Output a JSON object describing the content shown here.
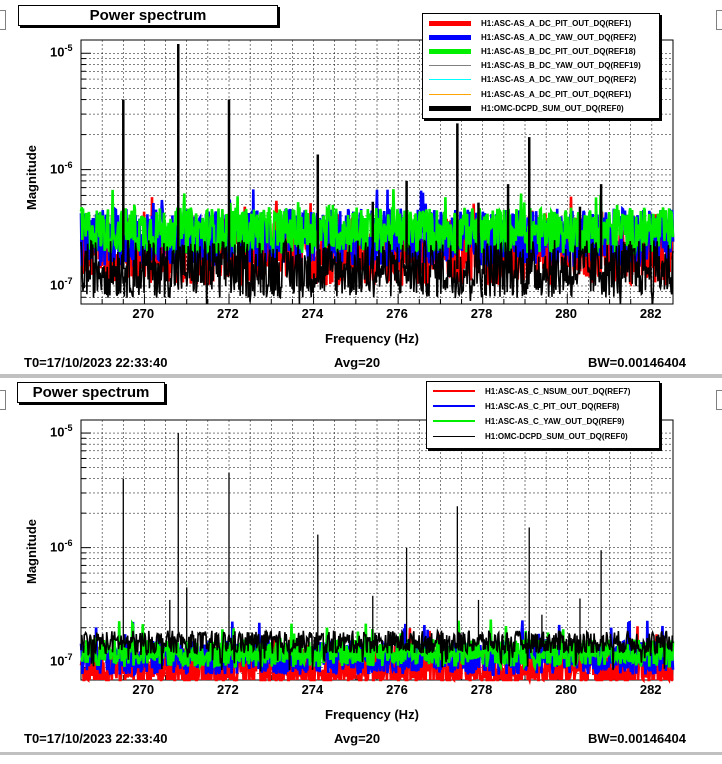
{
  "panels": [
    {
      "title": "Power spectrum",
      "legend": [
        {
          "name": "H1:ASC-AS_A_DC_PIT_OUT_DQ(REF1)",
          "color": "#ff0000",
          "width": "thick"
        },
        {
          "name": "H1:ASC-AS_A_DC_YAW_OUT_DQ(REF2)",
          "color": "#0000ff",
          "width": "thick"
        },
        {
          "name": "H1:ASC-AS_B_DC_PIT_OUT_DQ(REF18)",
          "color": "#00ee00",
          "width": "thick"
        },
        {
          "name": "H1:ASC-AS_B_DC_YAW_OUT_DQ(REF19)",
          "color": "#808080",
          "width": "thin"
        },
        {
          "name": "H1:ASC-AS_A_DC_YAW_OUT_DQ(REF2)",
          "color": "#00ffff",
          "width": "thin"
        },
        {
          "name": "H1:ASC-AS_A_DC_PIT_OUT_DQ(REF1)",
          "color": "#ffa500",
          "width": "thin"
        },
        {
          "name": "H1:OMC-DCPD_SUM_OUT_DQ(REF0)",
          "color": "#000000",
          "width": "thick"
        }
      ],
      "xlabel": "Frequency (Hz)",
      "ylabel": "Magnitude",
      "x_ticks": [
        "270",
        "272",
        "274",
        "276",
        "278",
        "280",
        "282"
      ],
      "y_ticks": [
        "10",
        "10",
        "10"
      ],
      "y_exps": [
        "-5",
        "-6",
        "-7"
      ],
      "footer_left": "T0=17/10/2023 22:33:40",
      "footer_mid": "Avg=20",
      "footer_right": "BW=0.00146404"
    },
    {
      "title": "Power spectrum",
      "legend": [
        {
          "name": "H1:ASC-AS_C_NSUM_OUT_DQ(REF7)",
          "color": "#ff0000",
          "width": "mid"
        },
        {
          "name": "H1:ASC-AS_C_PIT_OUT_DQ(REF8)",
          "color": "#0000ff",
          "width": "mid"
        },
        {
          "name": "H1:ASC-AS_C_YAW_OUT_DQ(REF9)",
          "color": "#00ee00",
          "width": "mid"
        },
        {
          "name": "H1:OMC-DCPD_SUM_OUT_DQ(REF0)",
          "color": "#000000",
          "width": "thin"
        }
      ],
      "xlabel": "Frequency (Hz)",
      "ylabel": "Magnitude",
      "x_ticks": [
        "270",
        "272",
        "274",
        "276",
        "278",
        "280",
        "282"
      ],
      "y_ticks": [
        "10",
        "10",
        "10"
      ],
      "y_exps": [
        "-5",
        "-6",
        "-7"
      ],
      "footer_left": "T0=17/10/2023 22:33:40",
      "footer_mid": "Avg=20",
      "footer_right": "BW=0.00146404"
    }
  ],
  "chart_data": [
    {
      "type": "line",
      "title": "Power spectrum",
      "xlabel": "Frequency (Hz)",
      "ylabel": "Magnitude",
      "xlim": [
        268.5,
        282.5
      ],
      "ylim": [
        7e-08,
        1.3e-05
      ],
      "y_scale": "log",
      "grid": true,
      "legend_position": "top-right",
      "series": [
        {
          "name": "H1:ASC-AS_A_DC_PIT_OUT_DQ(REF1)",
          "color": "#ff0000",
          "level": 2e-07,
          "spread": 0.3
        },
        {
          "name": "H1:ASC-AS_A_DC_YAW_OUT_DQ(REF2)",
          "color": "#0000ff",
          "level": 2.6e-07,
          "spread": 0.25
        },
        {
          "name": "H1:ASC-AS_B_DC_PIT_OUT_DQ(REF18)",
          "color": "#00ee00",
          "level": 3e-07,
          "spread": 0.2
        },
        {
          "name": "H1:OMC-DCPD_SUM_OUT_DQ(REF0)",
          "color": "#000000",
          "level": 1.4e-07,
          "spread": 0.25,
          "peaks": [
            [
              269.5,
              4e-06
            ],
            [
              270.8,
              1.2e-05
            ],
            [
              272.0,
              4e-06
            ],
            [
              274.1,
              1.35e-06
            ],
            [
              275.4,
              5.3e-07
            ],
            [
              276.2,
              8e-07
            ],
            [
              277.4,
              2.5e-06
            ],
            [
              277.9,
              5.2e-07
            ],
            [
              278.6,
              7.5e-07
            ],
            [
              279.1,
              1.9e-06
            ],
            [
              280.3,
              4.8e-07
            ],
            [
              280.8,
              7.5e-07
            ]
          ]
        }
      ]
    },
    {
      "type": "line",
      "title": "Power spectrum",
      "xlabel": "Frequency (Hz)",
      "ylabel": "Magnitude",
      "xlim": [
        268.5,
        282.5
      ],
      "ylim": [
        7e-08,
        1.3e-05
      ],
      "y_scale": "log",
      "grid": true,
      "legend_position": "top-right",
      "series": [
        {
          "name": "H1:ASC-AS_C_NSUM_OUT_DQ(REF7)",
          "color": "#ff0000",
          "level": 8.5e-08,
          "spread": 0.22
        },
        {
          "name": "H1:ASC-AS_C_PIT_OUT_DQ(REF8)",
          "color": "#0000ff",
          "level": 1.1e-07,
          "spread": 0.15
        },
        {
          "name": "H1:ASC-AS_C_YAW_OUT_DQ(REF9)",
          "color": "#00ee00",
          "level": 1.2e-07,
          "spread": 0.12
        },
        {
          "name": "H1:OMC-DCPD_SUM_OUT_DQ(REF0)",
          "color": "#000000",
          "level": 1.5e-07,
          "spread": 0.1,
          "peaks": [
            [
              269.5,
              4e-06
            ],
            [
              270.6,
              3.5e-07
            ],
            [
              270.8,
              1e-05
            ],
            [
              271.0,
              4.5e-07
            ],
            [
              272.0,
              4.5e-06
            ],
            [
              274.1,
              1.3e-06
            ],
            [
              275.4,
              3.8e-07
            ],
            [
              276.2,
              1e-06
            ],
            [
              277.4,
              2.3e-06
            ],
            [
              277.9,
              3.5e-07
            ],
            [
              279.1,
              1.5e-06
            ],
            [
              279.4,
              2.6e-07
            ],
            [
              280.3,
              3.6e-07
            ],
            [
              280.8,
              9.5e-07
            ]
          ]
        }
      ]
    }
  ]
}
